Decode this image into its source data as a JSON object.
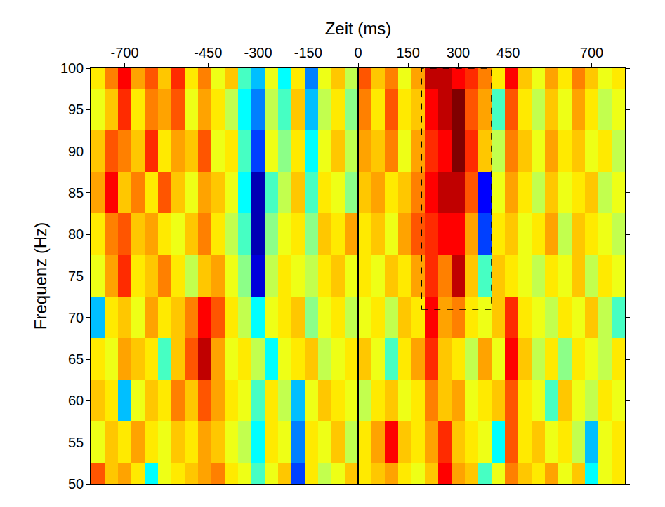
{
  "chart_data": {
    "type": "heatmap",
    "x_label": "Zeit (ms)",
    "y_label": "Frequenz (Hz)",
    "x": [
      -780,
      -740,
      -700,
      -660,
      -620,
      -580,
      -540,
      -500,
      -460,
      -420,
      -380,
      -340,
      -300,
      -260,
      -220,
      -180,
      -140,
      -100,
      -60,
      -20,
      20,
      60,
      100,
      140,
      180,
      220,
      260,
      300,
      340,
      380,
      420,
      460,
      500,
      540,
      580,
      620,
      660,
      700,
      740,
      780
    ],
    "y": [
      50,
      55,
      60,
      65,
      70,
      75,
      80,
      85,
      90,
      95,
      100
    ],
    "cells": [
      [
        0.6,
        0.3,
        0.4,
        0.2,
        -0.3,
        0.1,
        0.2,
        0.3,
        0.4,
        0.5,
        0.2,
        0.1,
        -0.2,
        0.1,
        0.3,
        -0.6,
        0.2,
        0.0,
        0.1,
        0.3,
        0.2,
        0.3,
        0.4,
        0.2,
        0.1,
        0.3,
        0.8,
        0.4,
        0.3,
        -0.2,
        0.1,
        0.5,
        0.3,
        0.2,
        0.4,
        0.1,
        0.3,
        -0.3,
        0.1,
        0.2
      ],
      [
        0.1,
        0.3,
        0.2,
        0.4,
        0.2,
        0.1,
        0.3,
        0.2,
        0.4,
        0.3,
        0.1,
        0.0,
        -0.3,
        0.2,
        0.1,
        -0.5,
        0.2,
        0.1,
        0.3,
        0.0,
        0.2,
        0.4,
        0.8,
        0.3,
        0.2,
        0.4,
        0.7,
        0.3,
        0.2,
        0.1,
        -0.3,
        0.6,
        0.2,
        0.3,
        0.1,
        0.2,
        0.0,
        -0.4,
        0.1,
        0.2
      ],
      [
        0.3,
        0.2,
        -0.4,
        0.1,
        0.3,
        0.2,
        0.5,
        0.3,
        0.6,
        0.4,
        0.2,
        0.1,
        -0.2,
        0.2,
        0.0,
        -0.4,
        0.1,
        0.3,
        0.2,
        0.1,
        0.0,
        0.2,
        0.3,
        0.1,
        0.2,
        0.5,
        0.3,
        0.4,
        0.1,
        0.2,
        0.3,
        0.6,
        0.2,
        0.1,
        -0.2,
        0.3,
        0.1,
        0.0,
        0.2,
        0.1
      ],
      [
        0.2,
        0.1,
        0.4,
        0.3,
        0.2,
        -0.2,
        0.3,
        0.6,
        0.9,
        0.4,
        0.1,
        0.2,
        0.0,
        -0.3,
        0.1,
        0.2,
        0.3,
        0.0,
        0.1,
        0.2,
        0.3,
        0.1,
        -0.2,
        0.2,
        0.4,
        0.7,
        0.3,
        0.2,
        0.0,
        0.4,
        0.1,
        0.8,
        0.3,
        0.0,
        0.2,
        -0.1,
        0.2,
        0.1,
        0.0,
        0.2
      ],
      [
        -0.4,
        0.2,
        0.3,
        0.1,
        0.4,
        0.2,
        0.3,
        0.5,
        0.8,
        0.6,
        0.2,
        0.0,
        -0.3,
        0.1,
        0.2,
        0.3,
        -0.1,
        0.1,
        0.2,
        0.0,
        0.1,
        0.2,
        0.0,
        0.3,
        0.2,
        0.8,
        0.4,
        0.5,
        0.2,
        0.1,
        0.3,
        0.7,
        0.2,
        0.1,
        0.0,
        0.2,
        0.1,
        0.3,
        0.0,
        -0.2
      ],
      [
        0.1,
        0.4,
        0.7,
        0.2,
        0.3,
        0.5,
        0.2,
        0.0,
        0.3,
        0.4,
        0.1,
        -0.1,
        -0.8,
        0.0,
        0.2,
        0.1,
        0.0,
        0.2,
        0.3,
        0.1,
        0.2,
        0.1,
        0.3,
        0.2,
        0.4,
        0.7,
        0.5,
        0.9,
        0.3,
        -0.2,
        0.3,
        0.2,
        0.1,
        0.0,
        0.2,
        0.1,
        0.3,
        0.0,
        0.2,
        0.1
      ],
      [
        0.2,
        0.5,
        0.6,
        0.3,
        0.4,
        0.2,
        0.1,
        0.3,
        0.5,
        0.2,
        0.0,
        -0.2,
        -0.9,
        -0.1,
        0.1,
        0.2,
        -0.1,
        0.3,
        0.2,
        0.4,
        0.2,
        0.3,
        0.1,
        0.4,
        0.6,
        0.7,
        0.8,
        0.8,
        0.4,
        -0.6,
        0.2,
        0.3,
        0.1,
        0.2,
        0.4,
        0.0,
        0.3,
        0.2,
        0.1,
        0.0
      ],
      [
        0.4,
        0.8,
        0.3,
        0.5,
        0.2,
        0.6,
        0.3,
        0.1,
        0.4,
        0.3,
        0.1,
        -0.3,
        -0.9,
        -0.2,
        0.0,
        0.3,
        -0.2,
        0.2,
        0.1,
        -0.1,
        0.3,
        0.4,
        0.2,
        0.3,
        0.5,
        0.8,
        0.9,
        0.9,
        0.6,
        -0.7,
        0.1,
        0.4,
        0.2,
        0.0,
        0.3,
        0.1,
        0.2,
        0.3,
        0.0,
        0.1
      ],
      [
        0.3,
        0.6,
        0.5,
        0.3,
        0.7,
        0.2,
        0.4,
        0.3,
        0.6,
        0.1,
        0.2,
        -0.2,
        -0.6,
        0.1,
        -0.1,
        0.2,
        -0.3,
        0.1,
        0.3,
        0.0,
        0.4,
        0.3,
        0.5,
        0.1,
        0.4,
        0.7,
        0.8,
        1.0,
        0.7,
        0.3,
        0.0,
        0.5,
        0.3,
        0.1,
        0.4,
        0.2,
        0.3,
        0.1,
        0.2,
        0.0
      ],
      [
        0.1,
        0.3,
        0.7,
        0.2,
        0.5,
        0.4,
        0.6,
        0.1,
        0.4,
        0.2,
        0.0,
        -0.3,
        -0.5,
        0.0,
        -0.2,
        0.3,
        -0.4,
        0.0,
        0.2,
        -0.1,
        0.5,
        0.2,
        0.6,
        0.2,
        0.3,
        0.8,
        0.9,
        1.0,
        0.6,
        0.4,
        -0.2,
        0.6,
        0.2,
        0.0,
        0.3,
        0.1,
        0.4,
        0.2,
        0.0,
        0.1
      ],
      [
        0.2,
        0.5,
        0.8,
        0.4,
        0.6,
        0.3,
        0.7,
        0.2,
        0.5,
        0.1,
        0.3,
        -0.2,
        -0.4,
        0.1,
        -0.3,
        0.2,
        -0.5,
        0.1,
        0.3,
        0.0,
        0.6,
        0.3,
        0.5,
        0.1,
        0.4,
        0.9,
        0.9,
        0.8,
        0.7,
        0.5,
        0.2,
        0.8,
        0.3,
        0.1,
        0.4,
        0.2,
        0.5,
        0.3,
        0.1,
        0.2
      ]
    ],
    "zlim": [
      -1,
      1
    ],
    "xlim": [
      -800,
      800
    ],
    "xticks": [
      -700,
      -450,
      -300,
      -150,
      0,
      150,
      300,
      450,
      700
    ],
    "ylim": [
      50,
      100
    ],
    "yticks": [
      50,
      55,
      60,
      65,
      70,
      75,
      80,
      85,
      90,
      95,
      100
    ],
    "vline": 0,
    "highlight": {
      "x": [
        190,
        400
      ],
      "y": [
        71,
        100
      ]
    },
    "grid": false
  }
}
